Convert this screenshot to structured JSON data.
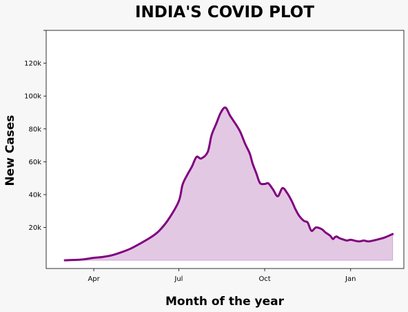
{
  "chart_data": {
    "type": "area",
    "title": "INDIA'S COVID PLOT",
    "xlabel": "Month of the year",
    "ylabel": "New Cases",
    "x_ticks": [
      {
        "date": "2020-04-01",
        "label": "Apr"
      },
      {
        "date": "2020-07-01",
        "label": "Jul"
      },
      {
        "date": "2020-10-01",
        "label": "Oct"
      },
      {
        "date": "2021-01-01",
        "label": "Jan"
      }
    ],
    "y_ticks": [
      {
        "value": 20000,
        "label": "20k"
      },
      {
        "value": 40000,
        "label": "40k"
      },
      {
        "value": 60000,
        "label": "60k"
      },
      {
        "value": 80000,
        "label": "80k"
      },
      {
        "value": 100000,
        "label": "100k"
      },
      {
        "value": 120000,
        "label": "120k"
      }
    ],
    "xlim": [
      "2020-02-10",
      "2021-02-27"
    ],
    "ylim": [
      -5000,
      140000
    ],
    "grid": false,
    "legend": "none",
    "line_color": "#800080",
    "fill_color": "#e3c8e3",
    "series": [
      {
        "x": [
          "2020-03-01",
          "2020-03-10",
          "2020-03-20",
          "2020-04-01",
          "2020-04-10",
          "2020-04-20",
          "2020-05-01",
          "2020-05-10",
          "2020-05-20",
          "2020-06-01",
          "2020-06-10",
          "2020-06-20",
          "2020-07-01",
          "2020-07-05",
          "2020-07-10",
          "2020-07-15",
          "2020-07-20",
          "2020-07-25",
          "2020-08-01",
          "2020-08-05",
          "2020-08-10",
          "2020-08-15",
          "2020-08-20",
          "2020-08-25",
          "2020-09-01",
          "2020-09-05",
          "2020-09-10",
          "2020-09-15",
          "2020-09-18",
          "2020-09-22",
          "2020-09-26",
          "2020-10-01",
          "2020-10-05",
          "2020-10-10",
          "2020-10-15",
          "2020-10-20",
          "2020-10-25",
          "2020-10-30",
          "2020-11-03",
          "2020-11-07",
          "2020-11-12",
          "2020-11-16",
          "2020-11-20",
          "2020-11-25",
          "2020-12-01",
          "2020-12-05",
          "2020-12-10",
          "2020-12-13",
          "2020-12-15",
          "2020-12-17",
          "2020-12-20",
          "2020-12-25",
          "2020-12-28",
          "2021-01-01",
          "2021-01-05",
          "2021-01-10",
          "2021-01-15",
          "2021-01-20",
          "2021-01-25",
          "2021-02-01",
          "2021-02-07",
          "2021-02-15"
        ],
        "values": [
          0,
          200,
          500,
          1500,
          2000,
          3000,
          5000,
          7000,
          10000,
          14000,
          18000,
          25000,
          36000,
          46000,
          52000,
          57000,
          63000,
          62000,
          66000,
          76000,
          83000,
          90000,
          93000,
          88000,
          82000,
          78000,
          71000,
          65000,
          59000,
          53000,
          47000,
          46500,
          46800,
          43000,
          39000,
          44000,
          41000,
          36000,
          31000,
          27000,
          24000,
          23000,
          18000,
          20000,
          19000,
          17000,
          15000,
          13000,
          14000,
          14500,
          13500,
          12500,
          12000,
          12500,
          12000,
          11500,
          12000,
          11500,
          12000,
          13000,
          14000,
          16000
        ]
      }
    ]
  }
}
